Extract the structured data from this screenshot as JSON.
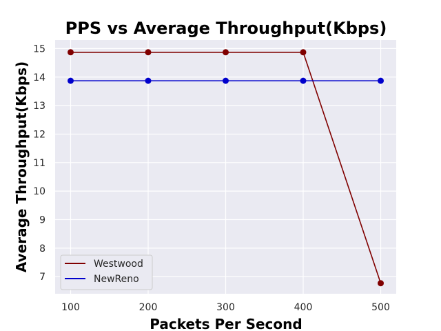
{
  "chart_data": {
    "type": "line",
    "title": "PPS vs Average Throughput(Kbps)",
    "xlabel": "Packets Per Second",
    "ylabel": "Average Throughput(Kbps)",
    "x": [
      100,
      200,
      300,
      400,
      500
    ],
    "xlim": [
      80,
      520
    ],
    "ylim": [
      6.4,
      15.3
    ],
    "xticks": [
      100,
      200,
      300,
      400,
      500
    ],
    "yticks": [
      7,
      8,
      9,
      10,
      11,
      12,
      13,
      14,
      15
    ],
    "grid": true,
    "legend_position": "lower-left",
    "background_color": "#eaeaf2",
    "grid_color": "#ffffff",
    "series": [
      {
        "name": "Westwood",
        "color": "#800000",
        "values": [
          14.87,
          14.87,
          14.87,
          14.87,
          6.77
        ]
      },
      {
        "name": "NewReno",
        "color": "#0000cc",
        "values": [
          13.87,
          13.87,
          13.87,
          13.87,
          13.87
        ]
      }
    ]
  }
}
